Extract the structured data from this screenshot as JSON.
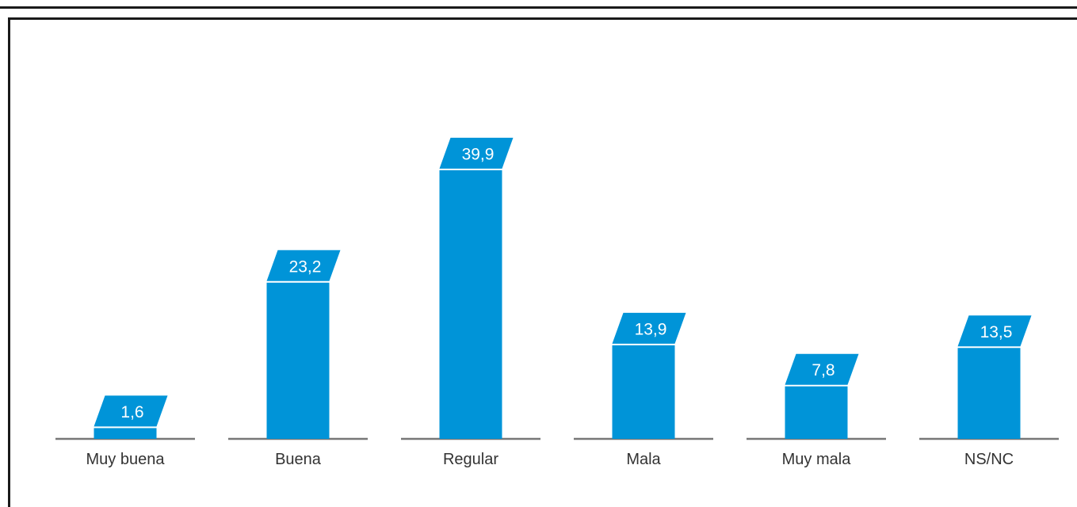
{
  "chart_data": {
    "type": "bar",
    "categories": [
      "Muy buena",
      "Buena",
      "Regular",
      "Mala",
      "Muy mala",
      "NS/NC"
    ],
    "values": [
      1.6,
      23.2,
      39.9,
      13.9,
      7.8,
      13.5
    ],
    "value_labels": [
      "1,6",
      "23,2",
      "39,9",
      "13,9",
      "7,8",
      "13,5"
    ],
    "title": "",
    "xlabel": "",
    "ylabel": "",
    "ylim": [
      0,
      40
    ],
    "grid": false,
    "legend": "none"
  },
  "colors": {
    "bar": "#0094d8",
    "baseline": "#777777",
    "text": "#333333",
    "frame": "#1a1a1a"
  }
}
